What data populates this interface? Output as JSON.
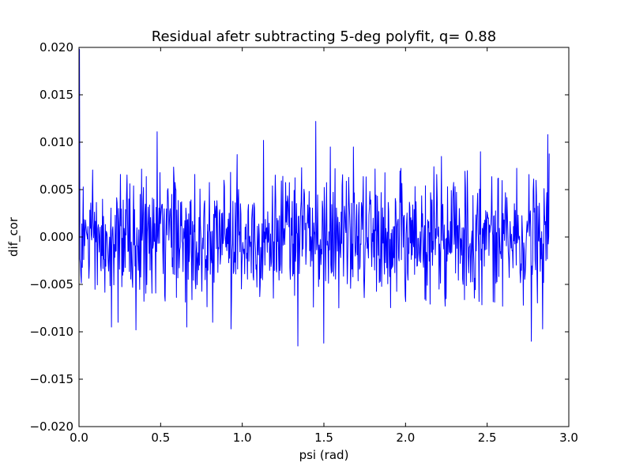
{
  "chart_data": {
    "type": "line",
    "title": "Residual afetr subtracting 5-deg polyfit, q= 0.88",
    "xlabel": "psi (rad)",
    "ylabel": "dif_cor",
    "xlim": [
      0.0,
      3.0
    ],
    "ylim": [
      -0.02,
      0.02
    ],
    "xticks": [
      "0.0",
      "0.5",
      "1.0",
      "1.5",
      "2.0",
      "2.5",
      "3.0"
    ],
    "yticks": [
      "−0.020",
      "−0.015",
      "−0.010",
      "−0.005",
      "0.000",
      "0.005",
      "0.010",
      "0.015",
      "0.020"
    ],
    "grid": false,
    "legend": "none",
    "series": [
      {
        "color": "#0000ff",
        "x_start": 0.0,
        "x_end": 2.88,
        "sample_count": 1000,
        "noise_std": 0.0032,
        "notable_points": [
          {
            "x": 0.002,
            "y": 0.0198
          },
          {
            "x": 0.01,
            "y": -0.0028
          },
          {
            "x": 0.2,
            "y": -0.0095
          },
          {
            "x": 0.24,
            "y": -0.009
          },
          {
            "x": 0.35,
            "y": -0.0098
          },
          {
            "x": 0.48,
            "y": 0.0111
          },
          {
            "x": 0.66,
            "y": -0.0095
          },
          {
            "x": 0.82,
            "y": -0.009
          },
          {
            "x": 0.93,
            "y": -0.0097
          },
          {
            "x": 0.97,
            "y": 0.0087
          },
          {
            "x": 1.13,
            "y": 0.0102
          },
          {
            "x": 1.34,
            "y": -0.0115
          },
          {
            "x": 1.45,
            "y": 0.0122
          },
          {
            "x": 1.5,
            "y": -0.0112
          },
          {
            "x": 1.54,
            "y": 0.0095
          },
          {
            "x": 1.68,
            "y": 0.0095
          },
          {
            "x": 2.22,
            "y": 0.0085
          },
          {
            "x": 2.46,
            "y": 0.009
          },
          {
            "x": 2.77,
            "y": -0.011
          },
          {
            "x": 2.84,
            "y": -0.0097
          },
          {
            "x": 2.87,
            "y": 0.0108
          },
          {
            "x": 2.88,
            "y": 0.0088
          }
        ]
      }
    ]
  }
}
